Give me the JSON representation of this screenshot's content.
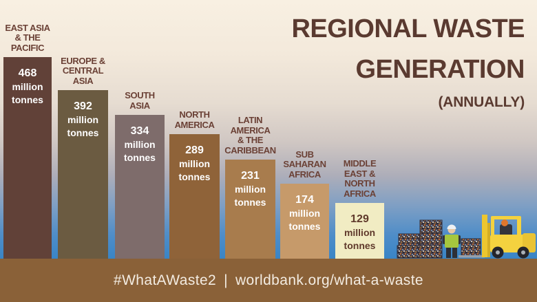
{
  "header": {
    "title_line1": "REGIONAL WASTE",
    "title_line2": "GENERATION",
    "subtitle": "(ANNUALLY)"
  },
  "footer": {
    "hashtag": "#WhatAWaste2",
    "separator": "|",
    "url": "worldbank.org/what-a-waste"
  },
  "colors": {
    "title_text": "#5a3a30",
    "region_label_text": "#6b4136",
    "footer_background": "#8a6138",
    "footer_text": "#f3ece2",
    "sky_gradient_top": "#f8f0e2",
    "sky_gradient_bottom": "#2d80c5"
  },
  "illustration": {
    "items": [
      "waste-bale-stack-icon",
      "worker-icon",
      "forklift-icon"
    ]
  },
  "chart_data": {
    "type": "bar",
    "title": "REGIONAL WASTE GENERATION (ANNUALLY)",
    "unit": "million tonnes",
    "legend_position": "none",
    "grid": false,
    "categories": [
      "EAST ASIA & THE PACIFIC",
      "EUROPE & CENTRAL ASIA",
      "SOUTH ASIA",
      "NORTH AMERICA",
      "LATIN AMERICA & THE CARIBBEAN",
      "SUB SAHARAN AFRICA",
      "MIDDLE EAST & NORTH AFRICA"
    ],
    "values": [
      468,
      392,
      334,
      289,
      231,
      174,
      129
    ],
    "bar_colors": [
      "#614138",
      "#6b5b41",
      "#7e6c6b",
      "#8f6339",
      "#a87c4d",
      "#c69a6a",
      "#f1ecc3"
    ],
    "value_label_colors": [
      "#ffffff",
      "#ffffff",
      "#ffffff",
      "#ffffff",
      "#ffffff",
      "#ffffff",
      "#5f392b"
    ],
    "bars": [
      {
        "label_lines": [
          "EAST ASIA",
          "& THE",
          "PACIFIC"
        ],
        "value": "468",
        "unit_lines": [
          "million",
          "tonnes"
        ]
      },
      {
        "label_lines": [
          "EUROPE &",
          "CENTRAL",
          "ASIA"
        ],
        "value": "392",
        "unit_lines": [
          "million",
          "tonnes"
        ]
      },
      {
        "label_lines": [
          "SOUTH",
          "ASIA"
        ],
        "value": "334",
        "unit_lines": [
          "million",
          "tonnes"
        ]
      },
      {
        "label_lines": [
          "NORTH",
          "AMERICA"
        ],
        "value": "289",
        "unit_lines": [
          "million",
          "tonnes"
        ]
      },
      {
        "label_lines": [
          "LATIN",
          "AMERICA",
          "& THE",
          "CARIBBEAN"
        ],
        "value": "231",
        "unit_lines": [
          "million",
          "tonnes"
        ]
      },
      {
        "label_lines": [
          "SUB",
          "SAHARAN",
          "AFRICA"
        ],
        "value": "174",
        "unit_lines": [
          "million",
          "tonnes"
        ]
      },
      {
        "label_lines": [
          "MIDDLE",
          "EAST &",
          "NORTH",
          "AFRICA"
        ],
        "value": "129",
        "unit_lines": [
          "million",
          "tonnes"
        ]
      }
    ]
  }
}
